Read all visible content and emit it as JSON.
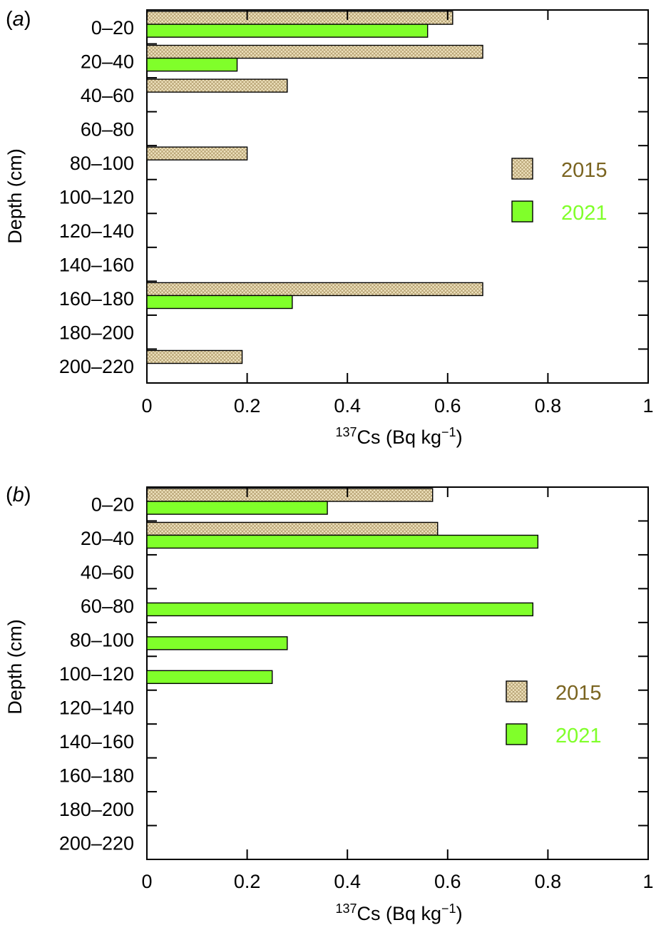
{
  "colors": {
    "series_2015_fill": "#efe3bf",
    "series_2015_hatch": "#b09a6a",
    "series_2015_legend_text": "#7a6420",
    "series_2021_fill": "#80ff2a",
    "series_2021_legend_text": "#80ff2a",
    "outline": "#000000"
  },
  "chart_data": [
    {
      "type": "bar",
      "orientation": "horizontal",
      "panel_label": "a",
      "title": "",
      "ylabel": "Depth (cm)",
      "xlabel_prefix_sup": "137",
      "xlabel_main": "Cs (Bq kg",
      "xlabel_unit_sup": "−1",
      "xlabel_suffix": ")",
      "xlim": [
        0,
        1
      ],
      "xticks": [
        0,
        0.2,
        0.4,
        0.6,
        0.8,
        1
      ],
      "xtick_labels": [
        "0",
        "0.2",
        "0.4",
        "0.6",
        "0.8",
        "1"
      ],
      "grid": false,
      "legend_position": "right",
      "categories": [
        "0–20",
        "20–40",
        "40–60",
        "60–80",
        "80–100",
        "100–120",
        "120–140",
        "140–160",
        "160–180",
        "180–200",
        "200–220"
      ],
      "series": [
        {
          "name": "2015",
          "pattern": "hatch",
          "values": [
            0.61,
            0.67,
            0.28,
            null,
            0.2,
            null,
            null,
            null,
            0.67,
            null,
            0.19
          ]
        },
        {
          "name": "2021",
          "pattern": "solid",
          "values": [
            0.56,
            0.18,
            null,
            null,
            null,
            null,
            null,
            null,
            0.29,
            null,
            null
          ]
        }
      ]
    },
    {
      "type": "bar",
      "orientation": "horizontal",
      "panel_label": "b",
      "title": "",
      "ylabel": "Depth (cm)",
      "xlabel_prefix_sup": "137",
      "xlabel_main": "Cs (Bq kg",
      "xlabel_unit_sup": "−1",
      "xlabel_suffix": ")",
      "xlim": [
        0,
        1
      ],
      "xticks": [
        0,
        0.2,
        0.4,
        0.6,
        0.8,
        1
      ],
      "xtick_labels": [
        "0",
        "0.2",
        "0.4",
        "0.6",
        "0.8",
        "1"
      ],
      "grid": false,
      "legend_position": "right",
      "categories": [
        "0–20",
        "20–40",
        "40–60",
        "60–80",
        "80–100",
        "100–120",
        "120–140",
        "140–160",
        "160–180",
        "180–200",
        "200–220"
      ],
      "series": [
        {
          "name": "2015",
          "pattern": "hatch",
          "values": [
            0.57,
            0.58,
            null,
            null,
            null,
            null,
            null,
            null,
            null,
            null,
            null
          ]
        },
        {
          "name": "2021",
          "pattern": "solid",
          "values": [
            0.36,
            0.78,
            null,
            0.77,
            0.28,
            0.25,
            null,
            null,
            null,
            null,
            null
          ]
        }
      ]
    }
  ]
}
